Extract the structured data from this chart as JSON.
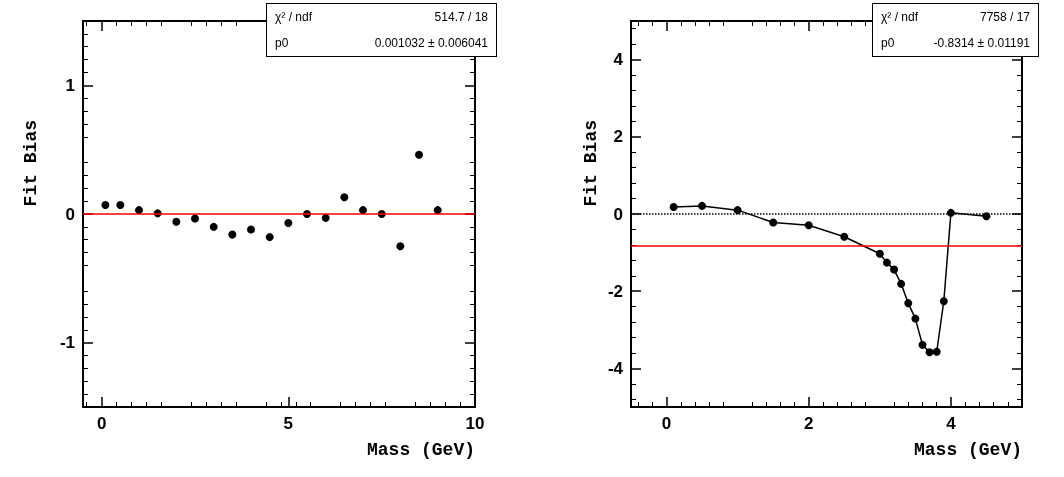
{
  "chart_data": [
    {
      "type": "scatter",
      "xlabel": "Mass (GeV)",
      "ylabel": "Fit Bias",
      "marker": "circle",
      "grid": false,
      "x": [
        0.1,
        0.5,
        1,
        1.5,
        2,
        2.5,
        3,
        3.5,
        4,
        4.5,
        5,
        5.5,
        6,
        6.5,
        7,
        7.5,
        8,
        8.5,
        9
      ],
      "series": [
        {
          "color": "#000000",
          "values": [
            0.07,
            0.07,
            0.03,
            0.005,
            -0.06,
            -0.035,
            -0.1,
            -0.16,
            -0.12,
            -0.18,
            -0.07,
            0,
            -0.03,
            0.13,
            0.03,
            0,
            -0.25,
            0.46,
            0.03
          ]
        }
      ],
      "xlim": [
        -0.5,
        10
      ],
      "xticks": [
        0,
        5,
        10
      ],
      "ylim": [
        -1.5,
        1.5
      ],
      "yticks": [
        -1,
        0,
        1
      ],
      "ref_lines": [
        {
          "axis": "y",
          "value": 0.001032,
          "color": "#ff0000",
          "line_style": "solid"
        }
      ],
      "annotations": [
        "χ² / ndf",
        "514.7 / 18",
        "p0",
        "0.001032 ± 0.006041"
      ]
    },
    {
      "type": "line",
      "xlabel": "Mass (GeV)",
      "ylabel": "Fit Bias",
      "marker": "circle",
      "line_style": "solid",
      "grid": false,
      "x": [
        0.1,
        0.5,
        1,
        1.5,
        2,
        2.5,
        3,
        3.1,
        3.2,
        3.3,
        3.4,
        3.5,
        3.6,
        3.7,
        3.8,
        3.9,
        4,
        4.5
      ],
      "series": [
        {
          "color": "#000000",
          "values": [
            0.18,
            0.21,
            0.1,
            -0.22,
            -0.29,
            -0.59,
            -1.03,
            -1.26,
            -1.44,
            -1.81,
            -2.31,
            -2.71,
            -3.39,
            -3.58,
            -3.57,
            -2.26,
            0.03,
            -0.06
          ]
        }
      ],
      "xlim": [
        -0.5,
        5
      ],
      "xticks": [
        0,
        2,
        4
      ],
      "ylim": [
        -5,
        5
      ],
      "yticks": [
        -4,
        -2,
        0,
        2,
        4
      ],
      "ref_lines": [
        {
          "axis": "y",
          "value": 0,
          "color": "#000000",
          "line_style": "dotted"
        },
        {
          "axis": "y",
          "value": -0.8314,
          "color": "#ff0000",
          "line_style": "solid"
        }
      ],
      "annotations": [
        "χ² / ndf",
        "7758 / 17",
        "p0",
        "-0.8314 ± 0.01191"
      ]
    }
  ]
}
